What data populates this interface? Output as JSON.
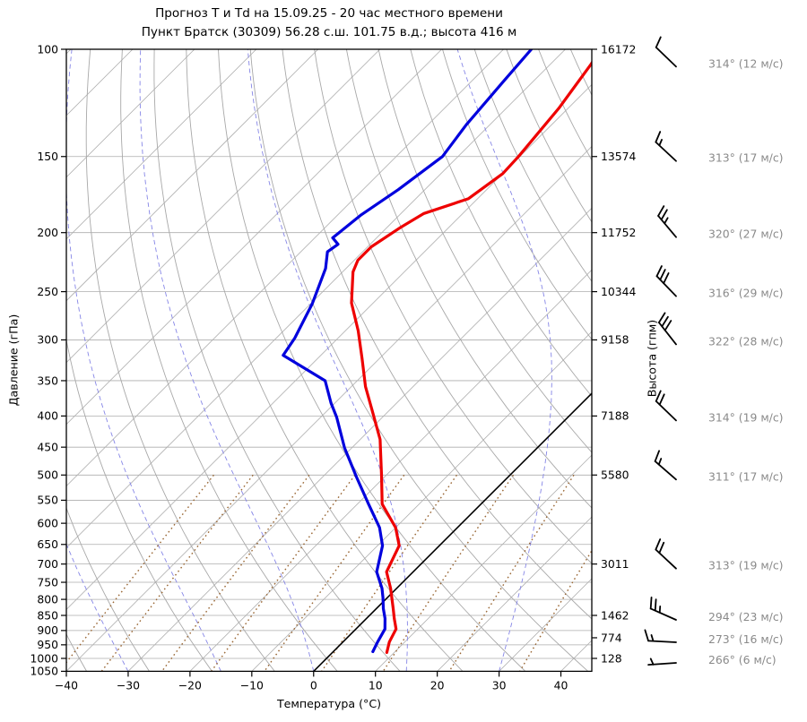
{
  "title": {
    "line1": "Прогноз Т и Td на 15.09.25 - 20 час местного времени",
    "line2": "Пункт Братск (30309) 56.28 с.ш. 101.75 в.д.; высота 416 м"
  },
  "axes": {
    "pressure_label": "Давление (гПа)",
    "height_label": "Высота (гпм)",
    "temp_label": "Температура (°C)",
    "p_range": [
      100,
      1050
    ],
    "t_range": [
      -40,
      45
    ],
    "skew_slope": 1,
    "pressure_ticks": [
      100,
      150,
      200,
      250,
      300,
      350,
      400,
      450,
      500,
      550,
      600,
      650,
      700,
      750,
      800,
      850,
      900,
      950,
      1000,
      1050
    ],
    "pressure_tick_labels": [
      "100",
      "150",
      "200",
      "250",
      "300",
      "350",
      "400",
      "450",
      "500",
      "550",
      "600",
      "650",
      "700",
      "750",
      "800",
      "850",
      "900",
      "950",
      "1000",
      "1050"
    ],
    "temp_ticks": [
      -40,
      -30,
      -20,
      -10,
      0,
      10,
      20,
      30,
      40
    ],
    "temp_tick_labels": [
      "−40",
      "−30",
      "−20",
      "−10",
      "0",
      "10",
      "20",
      "30",
      "40"
    ],
    "height_ticks": [
      {
        "p": 100,
        "label": "16172"
      },
      {
        "p": 150,
        "label": "13574"
      },
      {
        "p": 200,
        "label": "11752"
      },
      {
        "p": 250,
        "label": "10344"
      },
      {
        "p": 300,
        "label": "9158"
      },
      {
        "p": 400,
        "label": "7188"
      },
      {
        "p": 500,
        "label": "5580"
      },
      {
        "p": 700,
        "label": "3011"
      },
      {
        "p": 850,
        "label": "1462"
      },
      {
        "p": 925,
        "label": "774"
      },
      {
        "p": 1000,
        "label": "128"
      }
    ]
  },
  "chart_data": {
    "type": "line",
    "title": "Прогноз Т и Td на 15.09.25 - 20 час местного времени",
    "subtitle": "Пункт Братск (30309) 56.28 с.ш. 101.75 в.д.; высота 416 м",
    "projection": "skew-T log-p",
    "xlabel": "Температура (°C)",
    "ylabel": "Давление (гПа)",
    "ylabel_right": "Высота (гпм)",
    "xlim": [
      -40,
      45
    ],
    "ylim": [
      1050,
      100
    ],
    "grid": true,
    "series": [
      {
        "name": "temperature",
        "color": "#ee0000",
        "points_p_t": [
          [
            978,
            8.8
          ],
          [
            940,
            7.5
          ],
          [
            895,
            6.5
          ],
          [
            860,
            4.5
          ],
          [
            828,
            2.7
          ],
          [
            767,
            -1.0
          ],
          [
            721,
            -4.3
          ],
          [
            653,
            -6.5
          ],
          [
            610,
            -10.0
          ],
          [
            558,
            -16.0
          ],
          [
            500,
            -20.8
          ],
          [
            437,
            -26.8
          ],
          [
            390,
            -33.0
          ],
          [
            358,
            -37.7
          ],
          [
            322,
            -42.8
          ],
          [
            290,
            -47.9
          ],
          [
            261,
            -53.5
          ],
          [
            232,
            -58.3
          ],
          [
            222,
            -59.4
          ],
          [
            211,
            -59.4
          ],
          [
            196,
            -57.8
          ],
          [
            186,
            -56.3
          ],
          [
            176,
            -51.5
          ],
          [
            160,
            -50.0
          ],
          [
            150,
            -50.2
          ],
          [
            125,
            -51.5
          ],
          [
            106,
            -53.4
          ],
          [
            100,
            -54.3
          ]
        ]
      },
      {
        "name": "dewpoint",
        "color": "#0000dd",
        "points_p_t": [
          [
            975,
            6.4
          ],
          [
            940,
            5.6
          ],
          [
            895,
            4.7
          ],
          [
            860,
            3.0
          ],
          [
            828,
            1.1
          ],
          [
            795,
            -0.7
          ],
          [
            767,
            -2.4
          ],
          [
            721,
            -5.9
          ],
          [
            653,
            -9.2
          ],
          [
            610,
            -12.6
          ],
          [
            558,
            -18.2
          ],
          [
            504,
            -24.5
          ],
          [
            451,
            -31.2
          ],
          [
            402,
            -37.4
          ],
          [
            381,
            -40.6
          ],
          [
            350,
            -45.2
          ],
          [
            318,
            -56.1
          ],
          [
            298,
            -57.0
          ],
          [
            262,
            -59.7
          ],
          [
            229,
            -63.3
          ],
          [
            215,
            -65.7
          ],
          [
            209,
            -65.2
          ],
          [
            204,
            -67.1
          ],
          [
            187,
            -66.2
          ],
          [
            170,
            -64.3
          ],
          [
            150,
            -62.5
          ],
          [
            133,
            -63.8
          ],
          [
            113,
            -64.8
          ],
          [
            100,
            -65.5
          ]
        ]
      }
    ],
    "background": {
      "isotherm_step_c": 10,
      "isotherm_range_c": [
        -150,
        40
      ],
      "zero_isotherm_c": 0,
      "dry_adiabats_theta_c_start": -40,
      "dry_adiabats_theta_c_end": 200,
      "dry_adiabats_theta_c_step": 10,
      "moist_adiabats_surface_t_c": [
        -45,
        -30,
        -15,
        0,
        15,
        30,
        45
      ],
      "mixing_ratio_g_kg": [
        0.1,
        0.2,
        0.5,
        1,
        2,
        4,
        8,
        16,
        32
      ],
      "mixing_ratio_p_range": [
        500,
        1050
      ]
    }
  },
  "winds": {
    "unit": "м/с",
    "levels": [
      {
        "p": 105,
        "dir": 314,
        "speed": 12,
        "label": "314° (12 м/с)"
      },
      {
        "p": 150,
        "dir": 313,
        "speed": 17,
        "label": "313° (17 м/с)"
      },
      {
        "p": 200,
        "dir": 320,
        "speed": 27,
        "label": "320° (27 м/с)"
      },
      {
        "p": 250,
        "dir": 316,
        "speed": 29,
        "label": "316° (29 м/с)"
      },
      {
        "p": 300,
        "dir": 322,
        "speed": 28,
        "label": "322° (28 м/с)"
      },
      {
        "p": 400,
        "dir": 314,
        "speed": 19,
        "label": "314° (19 м/с)"
      },
      {
        "p": 500,
        "dir": 311,
        "speed": 17,
        "label": "311° (17 м/с)"
      },
      {
        "p": 700,
        "dir": 313,
        "speed": 19,
        "label": "313° (19 м/с)"
      },
      {
        "p": 850,
        "dir": 294,
        "speed": 23,
        "label": "294° (23 м/с)"
      },
      {
        "p": 925,
        "dir": 273,
        "speed": 16,
        "label": "273° (16 м/с)"
      },
      {
        "p": 1000,
        "dir": 266,
        "speed": 6,
        "label": "266° (6 м/с)"
      }
    ]
  },
  "colors": {
    "temperature": "#ee0000",
    "dewpoint": "#0000dd",
    "grid_gray": "#aeaeae",
    "dry_adiabat": "#a8a8a8",
    "moist_adiabat": "#8585e6",
    "mixing_ratio": "#996633",
    "zero_isotherm": "#000000",
    "wind_label": "#8a8a8a",
    "axis": "#000000"
  }
}
